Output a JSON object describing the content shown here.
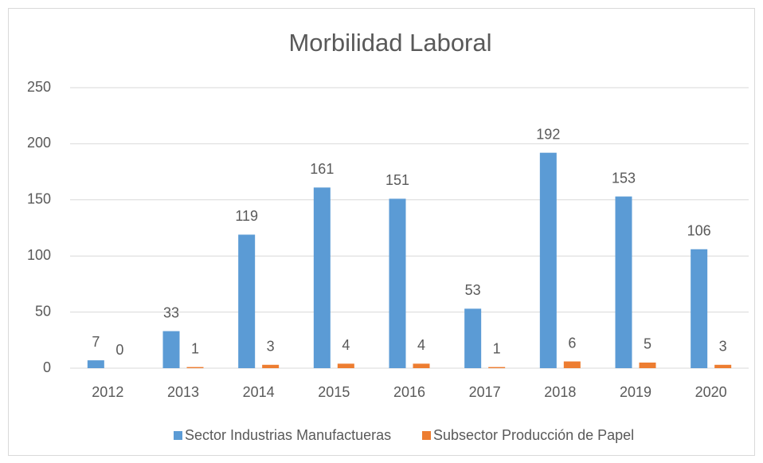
{
  "chart_data": {
    "type": "bar",
    "title": "Morbilidad Laboral",
    "categories": [
      "2012",
      "2013",
      "2014",
      "2015",
      "2016",
      "2017",
      "2018",
      "2019",
      "2020"
    ],
    "series": [
      {
        "name": "Sector Industrias Manufactueras",
        "color": "#5b9bd5",
        "values": [
          7,
          33,
          119,
          161,
          151,
          53,
          192,
          153,
          106
        ]
      },
      {
        "name": "Subsector Producción de Papel",
        "color": "#ed7d31",
        "values": [
          0,
          1,
          3,
          4,
          4,
          1,
          6,
          5,
          3
        ]
      }
    ],
    "ylim": [
      0,
      250
    ],
    "yticks": [
      0,
      50,
      100,
      150,
      200,
      250
    ],
    "grid": true,
    "legend": "bottom"
  }
}
